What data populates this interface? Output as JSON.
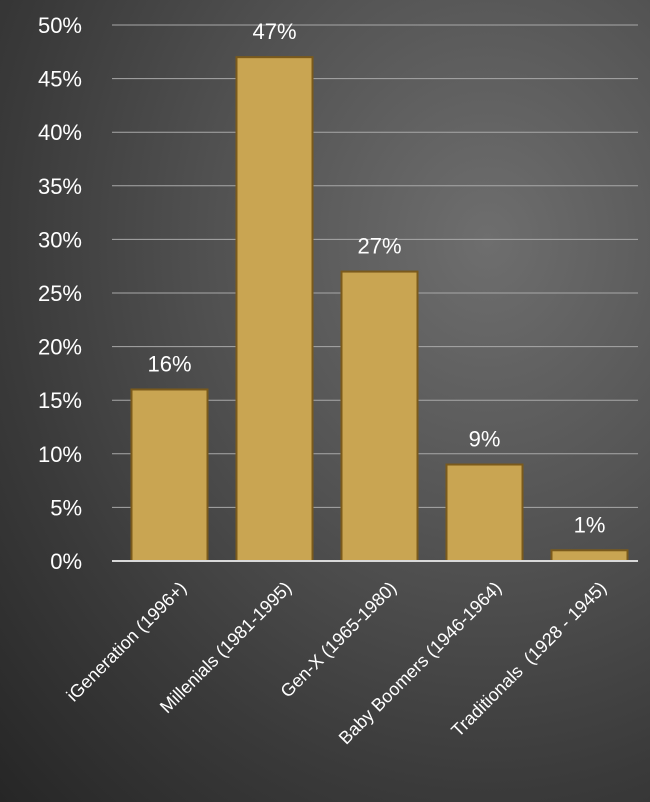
{
  "chart_data": {
    "type": "bar",
    "categories": [
      "iGeneration (1996+)",
      "Millenials (1981-1995)",
      "Gen-X (1965-1980)",
      "Baby Boomers (1946-1964)",
      "Traditionals  (1928 - 1945)"
    ],
    "values": [
      16,
      47,
      27,
      9,
      1
    ],
    "data_labels": [
      "16%",
      "47%",
      "27%",
      "9%",
      "1%"
    ],
    "ylim": [
      0,
      50
    ],
    "yticks": [
      0,
      5,
      10,
      15,
      20,
      25,
      30,
      35,
      40,
      45,
      50
    ],
    "ytick_labels": [
      "0%",
      "5%",
      "10%",
      "15%",
      "20%",
      "25%",
      "30%",
      "35%",
      "40%",
      "45%",
      "50%"
    ],
    "grid": true,
    "legend": "none",
    "bar_color": "#c9a552",
    "bar_edge_color": "#7a5a1c"
  }
}
